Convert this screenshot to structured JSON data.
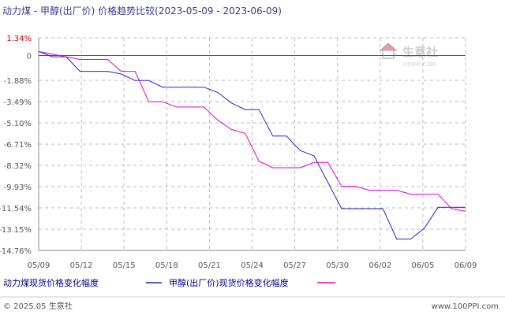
{
  "footer": {
    "copyright": "© 2025.05 生意社",
    "site": "www.100PPI.com"
  },
  "watermark": {
    "brand": "生意社",
    "domain": "100PPI.COM"
  },
  "colors": {
    "series_a": "#2222cc",
    "series_b": "#dd00dd",
    "title": "#3a3a8c",
    "legend_text": "#000088",
    "axis": "#888888"
  },
  "chart_data": {
    "type": "line",
    "title": "动力煤 - 甲醇(出厂价) 价格趋势比较(2023-05-09 - 2023-06-09)",
    "ylim": [
      -14.76,
      1.34
    ],
    "yticks": [
      "1.34%",
      "0",
      "-1.88%",
      "-3.49%",
      "-5.10%",
      "-6.71%",
      "-8.32%",
      "-9.93%",
      "-11.54%",
      "-13.15%",
      "-14.76%"
    ],
    "ytick_values": [
      1.34,
      0,
      -1.88,
      -3.49,
      -5.1,
      -6.71,
      -8.32,
      -9.93,
      -11.54,
      -13.15,
      -14.76
    ],
    "xticks": [
      "05/09",
      "05/12",
      "05/15",
      "05/18",
      "05/21",
      "05/24",
      "05/27",
      "05/30",
      "06/02",
      "06/05",
      "06/09"
    ],
    "xlim": [
      0,
      31
    ],
    "x": [
      0,
      1,
      2,
      3,
      4,
      5,
      6,
      7,
      8,
      9,
      10,
      11,
      12,
      13,
      14,
      15,
      16,
      17,
      18,
      19,
      20,
      21,
      22,
      23,
      24,
      25,
      26,
      27,
      28,
      29,
      30,
      31
    ],
    "grid": true,
    "series": [
      {
        "name": "动力煤现货价格变化幅度",
        "values": [
          0.3,
          -0.1,
          -0.1,
          -1.2,
          -1.2,
          -1.2,
          -1.4,
          -1.9,
          -1.9,
          -2.4,
          -2.4,
          -2.4,
          -2.4,
          -2.8,
          -3.6,
          -4.1,
          -4.1,
          -6.1,
          -6.1,
          -7.2,
          -7.6,
          -9.6,
          -11.6,
          -11.6,
          -11.6,
          -11.6,
          -13.9,
          -13.9,
          -13.1,
          -11.5,
          -11.5,
          -11.5
        ]
      },
      {
        "name": "甲醇(出厂价)现货价格变化幅度",
        "values": [
          0.3,
          0.1,
          -0.1,
          -0.3,
          -0.3,
          -0.3,
          -1.2,
          -1.2,
          -3.5,
          -3.5,
          -3.9,
          -3.9,
          -3.9,
          -4.9,
          -5.6,
          -5.9,
          -8.0,
          -8.5,
          -8.5,
          -8.5,
          -8.1,
          -8.1,
          -9.9,
          -9.9,
          -10.2,
          -10.2,
          -10.2,
          -10.5,
          -10.5,
          -10.5,
          -11.6,
          -11.8
        ]
      }
    ]
  }
}
